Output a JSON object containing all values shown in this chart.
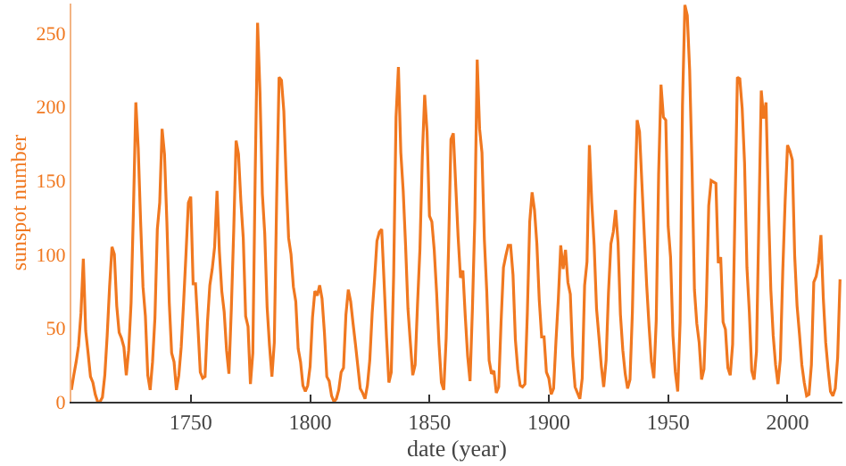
{
  "chart_data": {
    "type": "line",
    "xlabel": "date (year)",
    "ylabel": "sunspot number",
    "x": [
      1700,
      1701,
      1702,
      1703,
      1704,
      1705,
      1706,
      1707,
      1708,
      1709,
      1710,
      1711,
      1712,
      1713,
      1714,
      1715,
      1716,
      1717,
      1718,
      1719,
      1720,
      1721,
      1722,
      1723,
      1724,
      1725,
      1726,
      1727,
      1728,
      1729,
      1730,
      1731,
      1732,
      1733,
      1734,
      1735,
      1736,
      1737,
      1738,
      1739,
      1740,
      1741,
      1742,
      1743,
      1744,
      1745,
      1746,
      1747,
      1748,
      1749,
      1750,
      1751,
      1752,
      1753,
      1754,
      1755,
      1756,
      1757,
      1758,
      1759,
      1760,
      1761,
      1762,
      1763,
      1764,
      1765,
      1766,
      1767,
      1768,
      1769,
      1770,
      1771,
      1772,
      1773,
      1774,
      1775,
      1776,
      1777,
      1778,
      1779,
      1780,
      1781,
      1782,
      1783,
      1784,
      1785,
      1786,
      1787,
      1788,
      1789,
      1790,
      1791,
      1792,
      1793,
      1794,
      1795,
      1796,
      1797,
      1798,
      1799,
      1800,
      1801,
      1802,
      1803,
      1804,
      1805,
      1806,
      1807,
      1808,
      1809,
      1810,
      1811,
      1812,
      1813,
      1814,
      1815,
      1816,
      1817,
      1818,
      1819,
      1820,
      1821,
      1822,
      1823,
      1824,
      1825,
      1826,
      1827,
      1828,
      1829,
      1830,
      1831,
      1832,
      1833,
      1834,
      1835,
      1836,
      1837,
      1838,
      1839,
      1840,
      1841,
      1842,
      1843,
      1844,
      1845,
      1846,
      1847,
      1848,
      1849,
      1850,
      1851,
      1852,
      1853,
      1854,
      1855,
      1856,
      1857,
      1858,
      1859,
      1860,
      1861,
      1862,
      1863,
      1864,
      1865,
      1866,
      1867,
      1868,
      1869,
      1870,
      1871,
      1872,
      1873,
      1874,
      1875,
      1876,
      1877,
      1878,
      1879,
      1880,
      1881,
      1882,
      1883,
      1884,
      1885,
      1886,
      1887,
      1888,
      1889,
      1890,
      1891,
      1892,
      1893,
      1894,
      1895,
      1896,
      1897,
      1898,
      1899,
      1900,
      1901,
      1902,
      1903,
      1904,
      1905,
      1906,
      1907,
      1908,
      1909,
      1910,
      1911,
      1912,
      1913,
      1914,
      1915,
      1916,
      1917,
      1918,
      1919,
      1920,
      1921,
      1922,
      1923,
      1924,
      1925,
      1926,
      1927,
      1928,
      1929,
      1930,
      1931,
      1932,
      1933,
      1934,
      1935,
      1936,
      1937,
      1938,
      1939,
      1940,
      1941,
      1942,
      1943,
      1944,
      1945,
      1946,
      1947,
      1948,
      1949,
      1950,
      1951,
      1952,
      1953,
      1954,
      1955,
      1956,
      1957,
      1958,
      1959,
      1960,
      1961,
      1962,
      1963,
      1964,
      1965,
      1966,
      1967,
      1968,
      1969,
      1970,
      1971,
      1972,
      1973,
      1974,
      1975,
      1976,
      1977,
      1978,
      1979,
      1980,
      1981,
      1982,
      1983,
      1984,
      1985,
      1986,
      1987,
      1988,
      1989,
      1990,
      1991,
      1992,
      1993,
      1994,
      1995,
      1996,
      1997,
      1998,
      1999,
      2000,
      2001,
      2002,
      2003,
      2004,
      2005,
      2006,
      2007,
      2008,
      2009,
      2010,
      2011,
      2012,
      2013,
      2014,
      2015,
      2016,
      2017,
      2018,
      2019,
      2020,
      2021,
      2022
    ],
    "series": [
      {
        "color": "#f07820",
        "values": [
          8,
          18,
          27,
          38,
          60,
          97,
          48,
          33,
          17,
          13,
          5,
          0,
          0,
          3,
          18,
          45,
          78,
          105,
          100,
          65,
          47,
          43,
          37,
          18,
          35,
          67,
          130,
          203,
          172,
          122,
          78,
          58,
          18,
          8,
          27,
          57,
          117,
          135,
          185,
          168,
          122,
          67,
          33,
          27,
          8,
          18,
          37,
          67,
          100,
          135,
          139,
          80,
          80,
          51,
          20,
          16,
          17,
          54,
          79,
          90,
          105,
          143,
          102,
          75,
          61,
          35,
          19,
          63,
          116,
          177,
          168,
          136,
          111,
          58,
          51,
          12,
          33,
          154,
          257,
          210,
          141,
          114,
          64,
          38,
          17,
          40,
          138,
          220,
          218,
          197,
          150,
          111,
          100,
          78,
          68,
          36,
          27,
          11,
          7,
          11,
          24,
          57,
          75,
          72,
          79,
          70,
          47,
          17,
          14,
          4,
          0,
          2,
          8,
          20,
          23,
          59,
          76,
          68,
          53,
          39,
          24,
          9,
          6,
          2,
          11,
          28,
          60,
          83,
          109,
          115,
          117,
          81,
          44,
          13,
          20,
          86,
          193,
          227,
          169,
          143,
          106,
          63,
          40,
          18,
          25,
          66,
          103,
          166,
          208,
          183,
          126,
          122,
          103,
          74,
          39,
          13,
          8,
          43,
          104,
          178,
          182,
          147,
          112,
          84,
          89,
          58,
          31,
          14,
          63,
          124,
          232,
          185,
          169,
          110,
          75,
          28,
          19,
          21,
          6,
          10,
          54,
          91,
          99,
          106,
          106,
          86,
          42,
          22,
          11,
          10,
          12,
          60,
          122,
          142,
          130,
          107,
          69,
          44,
          44,
          20,
          16,
          5,
          9,
          41,
          70,
          106,
          90,
          103,
          81,
          73,
          31,
          10,
          6,
          2,
          16,
          79,
          95,
          174,
          135,
          106,
          63,
          44,
          24,
          10,
          28,
          74,
          107,
          115,
          130,
          108,
          59,
          35,
          19,
          9,
          15,
          60,
          133,
          191,
          183,
          148,
          113,
          79,
          51,
          27,
          16,
          55,
          154,
          215,
          193,
          191,
          119,
          98,
          45,
          20,
          7,
          54,
          201,
          269,
          262,
          225,
          159,
          76,
          53,
          40,
          15,
          22,
          67,
          133,
          150,
          149,
          148,
          94,
          98,
          54,
          49,
          23,
          18,
          39,
          131,
          220,
          219,
          199,
          162,
          91,
          61,
          21,
          15,
          34,
          123,
          211,
          192,
          203,
          133,
          76,
          45,
          25,
          12,
          29,
          88,
          136,
          174,
          170,
          164,
          99,
          65,
          46,
          25,
          13,
          4,
          5,
          25,
          81,
          85,
          94,
          113,
          70,
          40,
          22,
          7,
          4,
          9,
          30,
          83
        ]
      }
    ],
    "xlim": [
      1700,
      2023
    ],
    "ylim": [
      0,
      270
    ],
    "xticks": [
      1750,
      1800,
      1850,
      1900,
      1950,
      2000
    ],
    "yticks": [
      0,
      50,
      100,
      150,
      200,
      250
    ],
    "marker": "none",
    "line_style": "solid"
  }
}
